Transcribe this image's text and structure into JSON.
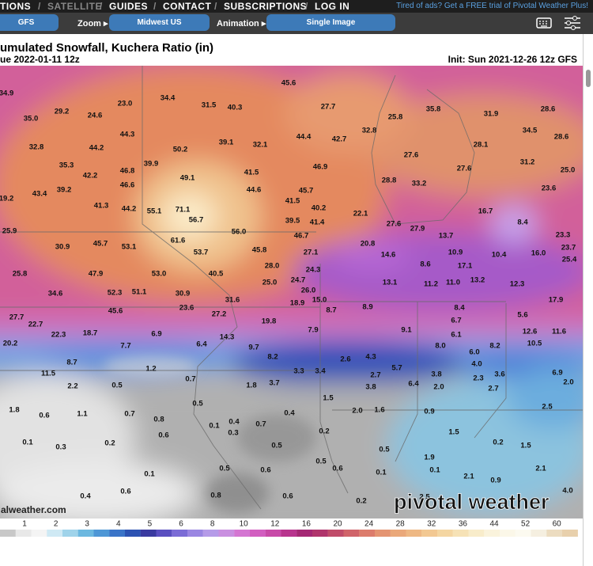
{
  "nav": {
    "items": [
      "TIONS",
      "SATELLITE",
      "GUIDES",
      "CONTACT",
      "SUBSCRIPTIONS",
      "LOG IN"
    ],
    "ad": "Tired of ads? Get a FREE trial of Pivotal Weather Plus!"
  },
  "toolbar": {
    "model": "GFS",
    "zoom_label": "Zoom ▸",
    "zoom": "Midwest US",
    "animation_label": "Animation ▸",
    "animation": "Single Image"
  },
  "map": {
    "title": "umulated Snowfall, Kuchera Ratio (in)",
    "valid": "ue 2022-01-11 12z",
    "init": "Init: Sun 2021-12-26 12z GFS",
    "site": "alweather.com",
    "watermark": "pivotal weather",
    "point_labels": [
      "34.9",
      "29.2",
      "24.6",
      "23.0",
      "34.4",
      "31.5",
      "40.3",
      "45.6",
      "27.7",
      "25.8",
      "35.8",
      "31.9",
      "28.6",
      "35.0",
      "32.8",
      "44.2",
      "44.3",
      "50.2",
      "39.1",
      "32.1",
      "44.4",
      "42.7",
      "32.8",
      "34.5",
      "28.6",
      "28.1",
      "27.6",
      "35.3",
      "42.2",
      "46.8",
      "39.9",
      "49.1",
      "41.5",
      "46.9",
      "31.2",
      "25.0",
      "27.6",
      "28.8",
      "33.2",
      "39.2",
      "43.4",
      "46.6",
      "44.6",
      "45.7",
      "23.6",
      "19.2",
      "41.3",
      "44.2",
      "55.1",
      "71.1",
      "56.7",
      "41.5",
      "40.2",
      "22.1",
      "16.7",
      "8.4",
      "39.5",
      "41.4",
      "27.6",
      "27.9",
      "25.9",
      "56.0",
      "46.7",
      "13.7",
      "23.3",
      "45.7",
      "53.1",
      "61.6",
      "30.9",
      "20.8",
      "10.9",
      "23.7",
      "53.7",
      "45.8",
      "27.1",
      "14.6",
      "10.4",
      "16.0",
      "25.4",
      "17.1",
      "8.6",
      "25.8",
      "47.9",
      "53.0",
      "40.5",
      "28.0",
      "24.3",
      "13.1",
      "11.2",
      "11.0",
      "13.2",
      "12.3",
      "25.0",
      "24.7",
      "34.6",
      "52.3",
      "51.1",
      "30.9",
      "26.0",
      "31.6",
      "18.9",
      "15.0",
      "17.9",
      "45.6",
      "23.6",
      "27.2",
      "8.7",
      "8.9",
      "8.4",
      "5.6",
      "27.7",
      "6.7",
      "22.7",
      "19.8",
      "9.1",
      "12.6",
      "11.6",
      "22.3",
      "18.7",
      "6.9",
      "7.9",
      "6.1",
      "14.3",
      "10.5",
      "20.2",
      "7.7",
      "6.4",
      "9.7",
      "8.0",
      "8.2",
      "6.0",
      "8.2",
      "2.6",
      "4.3",
      "8.7",
      "1.2",
      "4.0",
      "5.7",
      "3.3",
      "3.4",
      "2.7",
      "3.8",
      "3.6",
      "6.9",
      "11.5",
      "0.7",
      "2.3",
      "2.0",
      "3.8",
      "6.4",
      "2.0",
      "2.7",
      "0.5",
      "2.2",
      "1.8",
      "3.7",
      "1.5",
      "0.5",
      "1.8",
      "0.7",
      "2.0",
      "1.6",
      "0.9",
      "2.5",
      "0.6",
      "1.1",
      "0.8",
      "0.4",
      "0.4",
      "0.1",
      "0.7",
      "0.3",
      "0.2",
      "1.5",
      "0.6",
      "0.1",
      "0.2",
      "0.5",
      "0.2",
      "1.5",
      "0.3",
      "0.5",
      "1.9",
      "0.5",
      "0.6",
      "0.5",
      "0.6",
      "0.1",
      "0.1",
      "2.1",
      "0.1",
      "2.1",
      "0.9",
      "0.6",
      "0.4",
      "0.8",
      "0.6",
      "2.5",
      "0.2",
      "4.0"
    ]
  },
  "legend": {
    "labels": [
      "1",
      "2",
      "3",
      "4",
      "5",
      "6",
      "8",
      "10",
      "12",
      "16",
      "20",
      "24",
      "28",
      "32",
      "36",
      "44",
      "52",
      "60"
    ]
  }
}
